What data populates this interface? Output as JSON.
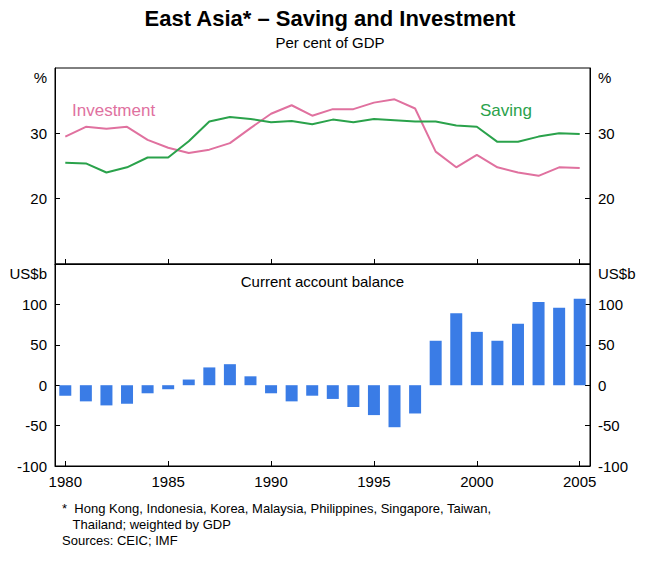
{
  "title": "East Asia* – Saving and Investment",
  "subtitle": "Per cent of GDP",
  "footnote": "*  Hong Kong, Indonesia, Korea, Malaysia, Philippines, Singapore, Taiwan,\n   Thailand; weighted by GDP",
  "source": "Sources: CEIC; IMF",
  "chart_data": [
    {
      "type": "line",
      "x": [
        1980,
        1981,
        1982,
        1983,
        1984,
        1985,
        1986,
        1987,
        1988,
        1989,
        1990,
        1991,
        1992,
        1993,
        1994,
        1995,
        1996,
        1997,
        1998,
        1999,
        2000,
        2001,
        2002,
        2003,
        2004,
        2005
      ],
      "xlim": [
        1979.5,
        2005.5
      ],
      "xticks": [
        1980,
        1985,
        1990,
        1995,
        2000,
        2005
      ],
      "ylim": [
        10,
        40
      ],
      "yticks": [
        20,
        30
      ],
      "y_label": "%",
      "y2lim": [
        10,
        40
      ],
      "y2ticks": [
        20,
        30
      ],
      "y2_label": "%",
      "grid": false,
      "tick_labels": "y",
      "series": [
        {
          "name": "Investment",
          "color": "#e0719f",
          "values": [
            29.5,
            31,
            30.7,
            31,
            29,
            27.8,
            27,
            27.5,
            28.5,
            30.8,
            33,
            34.3,
            32.7,
            33.7,
            33.7,
            34.7,
            35.2,
            33.8,
            27.2,
            24.8,
            26.7,
            24.8,
            24,
            23.5,
            24.8,
            24.7
          ]
        },
        {
          "name": "Saving",
          "color": "#2aa24b",
          "values": [
            25.5,
            25.4,
            24,
            24.8,
            26.3,
            26.3,
            28.8,
            31.8,
            32.5,
            32.2,
            31.7,
            31.9,
            31.4,
            32.1,
            31.7,
            32.2,
            32,
            31.8,
            31.8,
            31.2,
            31,
            28.7,
            28.7,
            29.5,
            30,
            29.9
          ]
        }
      ]
    },
    {
      "type": "bar",
      "title": "Current account balance",
      "x": [
        1980,
        1981,
        1982,
        1983,
        1984,
        1985,
        1986,
        1987,
        1988,
        1989,
        1990,
        1991,
        1992,
        1993,
        1994,
        1995,
        1996,
        1997,
        1998,
        1999,
        2000,
        2001,
        2002,
        2003,
        2004,
        2005
      ],
      "values": [
        -13,
        -20,
        -25,
        -23,
        -10,
        -5,
        7,
        22,
        26,
        11,
        -10,
        -20,
        -13,
        -17,
        -27,
        -37,
        -52,
        -35,
        55,
        89,
        66,
        55,
        76,
        103,
        96,
        107
      ],
      "color": "#3a7ce6",
      "xlim": [
        1979.5,
        2005.5
      ],
      "xticks": [
        1980,
        1985,
        1990,
        1995,
        2000,
        2005
      ],
      "ylim": [
        -100,
        150
      ],
      "yticks": [
        -100,
        -50,
        0,
        50,
        100
      ],
      "y_label": "US$b",
      "y2lim": [
        -100,
        150
      ],
      "y2ticks": [
        -100,
        -50,
        0,
        50,
        100
      ],
      "y2_label": "US$b",
      "grid": false
    }
  ]
}
